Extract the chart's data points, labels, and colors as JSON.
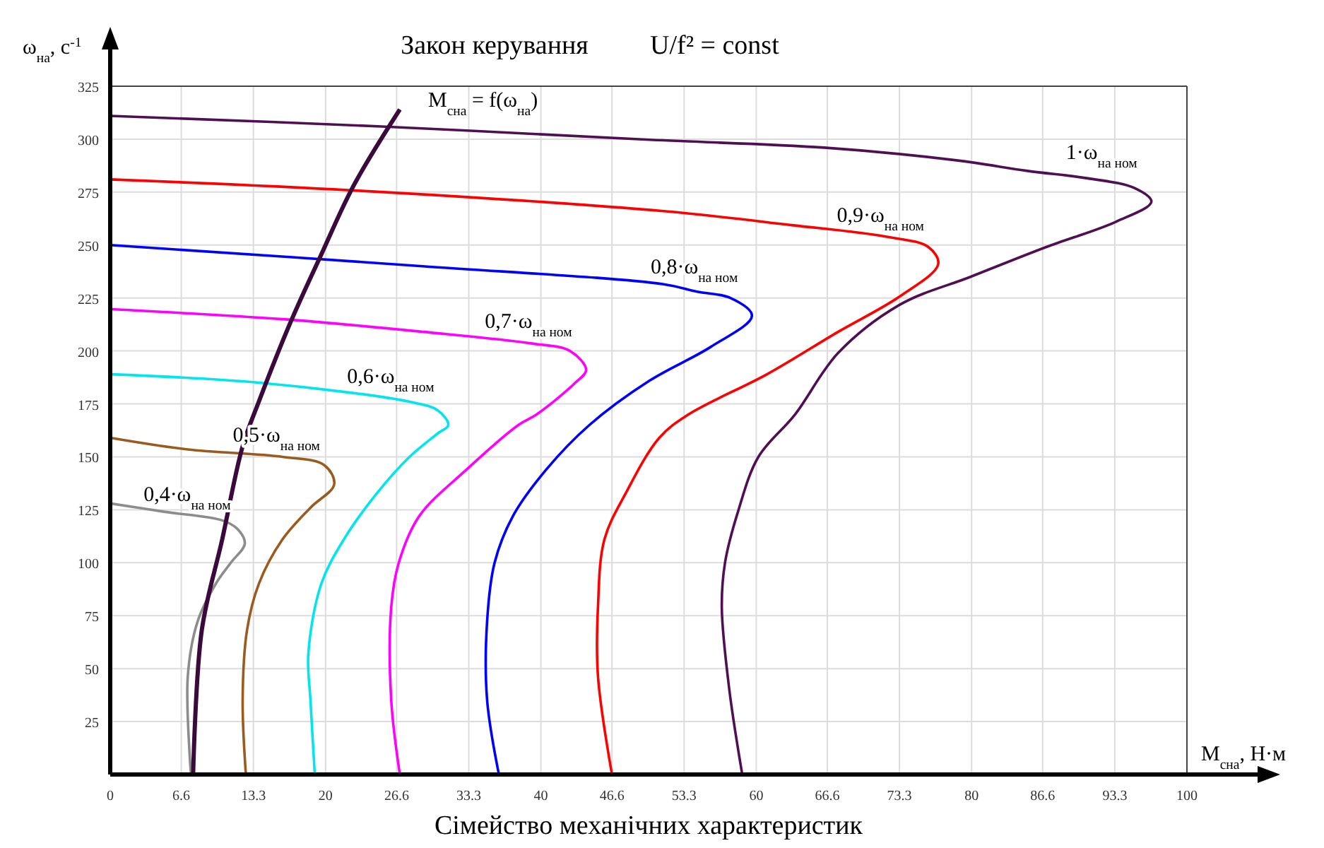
{
  "chart_data": {
    "type": "line",
    "title": "Закон керування",
    "subtitle": "U/f² = const",
    "xlabel": "M$_{cна}$, Н·м",
    "ylabel": "ω$_{на}$, с$^{-1}$",
    "annotations": [
      "Сімейство механічних характеристик"
    ],
    "xlim": [
      0,
      100
    ],
    "ylim": [
      0,
      325
    ],
    "xticks": [
      0,
      6.6,
      13.3,
      20,
      26.6,
      33.3,
      40,
      46.6,
      53.3,
      60,
      66.6,
      73.3,
      80,
      86.6,
      93.3,
      100
    ],
    "yticks": [
      25,
      50,
      75,
      100,
      125,
      150,
      175,
      200,
      225,
      250,
      275,
      300,
      325
    ],
    "grid": true,
    "series": [
      {
        "name": "1·ω$_{на ном}$",
        "color": "#4f0f52",
        "x": [
          58.7,
          57.5,
          56.8,
          57.1,
          58.3,
          60.2,
          63.6,
          67.6,
          73.4,
          79.9,
          86.9,
          93.4,
          96.7,
          95.1,
          90.8,
          85.2,
          78.6,
          66.3,
          50.1,
          25.2,
          0
        ],
        "values": [
          0,
          40,
          79,
          100,
          124,
          150,
          170,
          199,
          222,
          235,
          249,
          261,
          270.5,
          277,
          281.5,
          285,
          290,
          296,
          299.7,
          306,
          311
        ]
      },
      {
        "name": "0,9·ω$_{на ном}$",
        "color": "#ff0000",
        "x": [
          46.6,
          45.3,
          45.3,
          45.9,
          47.9,
          51,
          53.7,
          61,
          67.6,
          73.4,
          76.9,
          76,
          72,
          63.3,
          51.4,
          22.6,
          0
        ],
        "values": [
          0,
          46.5,
          79,
          111,
          133,
          159,
          170,
          189,
          209,
          226,
          241,
          249,
          254,
          259.4,
          266,
          275.8,
          281
        ]
      },
      {
        "name": "0,8·ω$_{на ном}$",
        "color": "#0000ff",
        "x": [
          36.1,
          35,
          35,
          35.7,
          37.4,
          40.5,
          44.5,
          50.1,
          55.8,
          59.6,
          57.6,
          54.5,
          51.4,
          29,
          0
        ],
        "values": [
          0,
          35.4,
          72,
          100,
          122,
          144,
          165,
          186,
          202,
          216.6,
          225,
          228,
          231.5,
          240,
          250
        ]
      },
      {
        "name": "0,7·ω$_{на ном}$",
        "color": "#ff00ff",
        "x": [
          26.9,
          26.1,
          26.1,
          26.8,
          28.7,
          33.1,
          37.9,
          39.6,
          43.2,
          44.2,
          42.7,
          39.2,
          29.1,
          16,
          0
        ],
        "values": [
          0,
          35,
          79,
          100,
          122,
          144,
          165,
          170,
          185,
          191,
          200,
          203.5,
          209,
          215,
          219.7
        ]
      },
      {
        "name": "0,6·ω$_{на ном}$",
        "color": "#00e5ee",
        "x": [
          19,
          18.6,
          18.4,
          19.6,
          21.7,
          24.8,
          27.8,
          30.4,
          31.4,
          30.4,
          27.8,
          13.8,
          0
        ],
        "values": [
          0,
          35,
          57,
          90,
          111,
          133,
          150,
          161,
          165,
          172,
          176,
          185,
          189
        ]
      },
      {
        "name": "0,5·ω$_{на ном}$",
        "color": "#9b5a1e",
        "x": [
          12.6,
          12.3,
          12.7,
          13.8,
          16,
          18.6,
          20.8,
          19.9,
          16,
          7.2,
          0
        ],
        "values": [
          0,
          35,
          68,
          90,
          111,
          126,
          137,
          146,
          150,
          153.5,
          159
        ]
      },
      {
        "name": "0,4·ω$_{на ном}$",
        "color": "#8c8c8c",
        "x": [
          7.5,
          7.2,
          8.1,
          9.8,
          11.2,
          12.5,
          11.8,
          10.4,
          5.1,
          0
        ],
        "values": [
          0,
          46,
          72,
          90,
          100,
          109,
          116,
          120,
          124,
          128
        ]
      },
      {
        "name": "M$_{cна}$ = f(ω$_{на}$)",
        "color": "#3a0a3c",
        "x": [
          7.7,
          8.5,
          10.4,
          12.3,
          13.8,
          16.7,
          19.6,
          22.6,
          26.9
        ],
        "values": [
          0,
          68,
          111,
          155,
          176,
          213,
          245.5,
          278,
          314
        ]
      }
    ]
  }
}
